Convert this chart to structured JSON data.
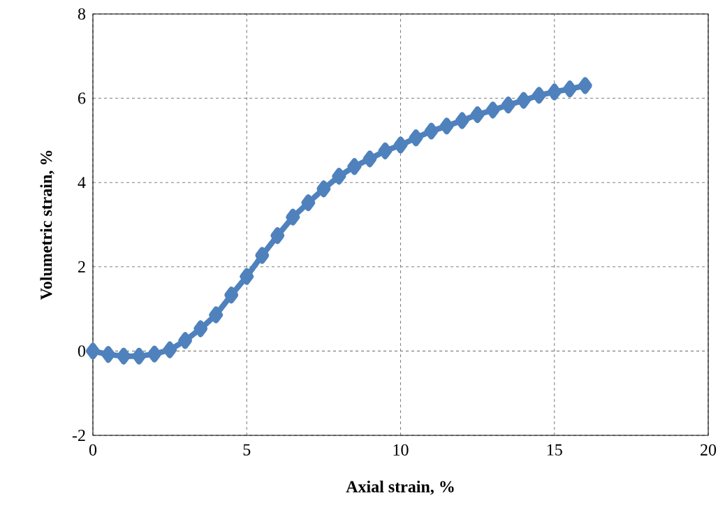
{
  "chart_data": {
    "type": "line",
    "xlabel": "Axial strain, %",
    "ylabel": "Volumetric strain, %",
    "x": [
      0,
      0.5,
      1,
      1.5,
      2,
      2.5,
      3,
      3.5,
      4,
      4.5,
      5,
      5.5,
      6,
      6.5,
      7,
      7.5,
      8,
      8.5,
      9,
      9.5,
      10,
      10.5,
      11,
      11.5,
      12,
      12.5,
      13,
      13.5,
      14,
      14.5,
      15,
      15.5,
      16
    ],
    "values": [
      0,
      -0.08,
      -0.12,
      -0.12,
      -0.07,
      0.03,
      0.25,
      0.53,
      0.86,
      1.33,
      1.77,
      2.27,
      2.74,
      3.18,
      3.52,
      3.85,
      4.15,
      4.38,
      4.56,
      4.75,
      4.89,
      5.06,
      5.22,
      5.34,
      5.47,
      5.61,
      5.72,
      5.84,
      5.95,
      6.07,
      6.15,
      6.22,
      6.3
    ],
    "color": "#4f81bd",
    "marker": "diamond",
    "line_style": "solid",
    "xlim": [
      0,
      20
    ],
    "ylim": [
      -2,
      8
    ],
    "xticks": [
      0,
      5,
      10,
      15,
      20
    ],
    "yticks": [
      -2,
      0,
      2,
      4,
      6,
      8
    ],
    "grid": true
  }
}
